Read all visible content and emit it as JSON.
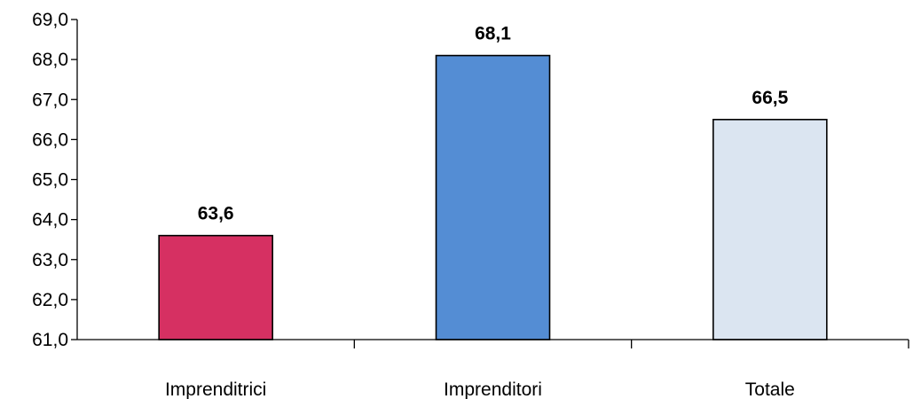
{
  "chart_data": {
    "type": "bar",
    "categories": [
      "Imprenditrici",
      "Imprenditori",
      "Totale"
    ],
    "values": [
      63.6,
      68.1,
      66.5
    ],
    "value_labels": [
      "63,6",
      "68,1",
      "66,5"
    ],
    "colors": [
      "#d63062",
      "#548dd4",
      "#dbe5f1"
    ],
    "ylim": [
      61.0,
      69.0
    ],
    "y_ticks": [
      61.0,
      62.0,
      63.0,
      64.0,
      65.0,
      66.0,
      67.0,
      68.0,
      69.0
    ],
    "y_tick_labels": [
      "61,0",
      "62,0",
      "63,0",
      "64,0",
      "65,0",
      "66,0",
      "67,0",
      "68,0",
      "69,0"
    ],
    "title": "",
    "xlabel": "",
    "ylabel": "",
    "grid": false,
    "legend": "none"
  }
}
